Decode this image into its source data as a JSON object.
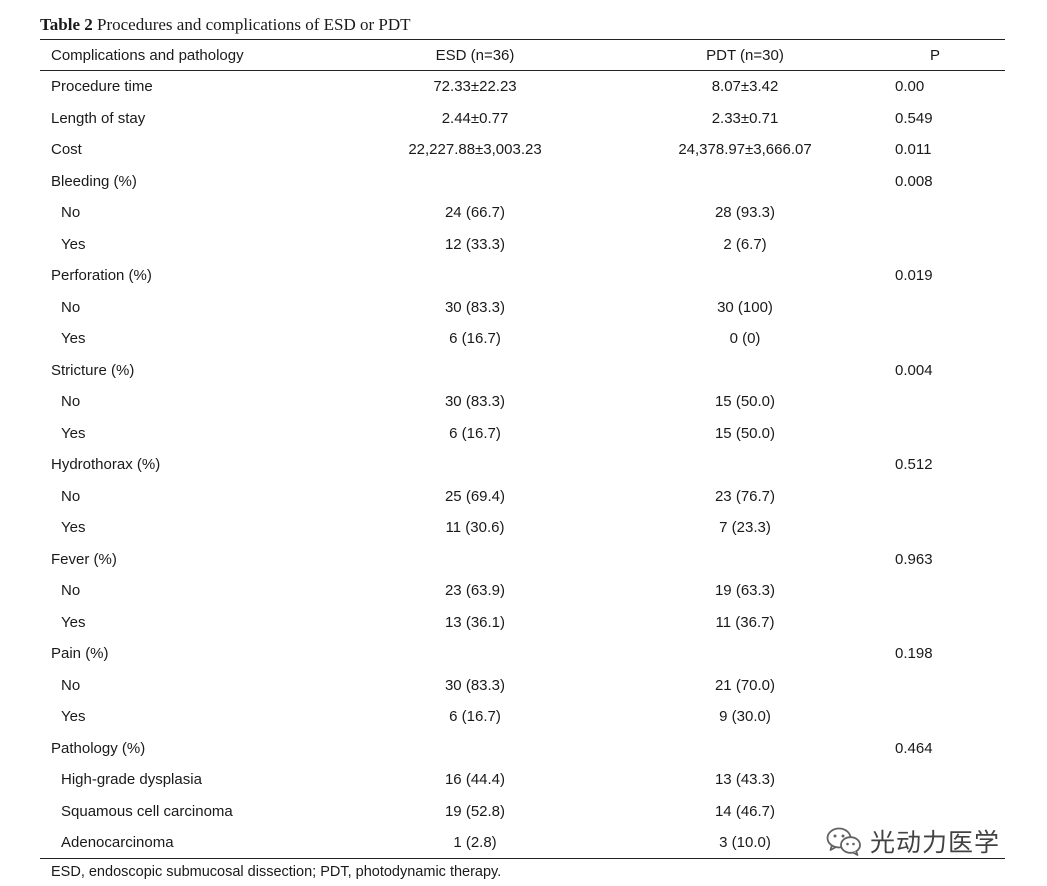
{
  "caption": {
    "label": "Table 2",
    "title": "Procedures and complications of ESD or PDT"
  },
  "table": {
    "headers": [
      "Complications and pathology",
      "ESD (n=36)",
      "PDT (n=30)",
      "P"
    ],
    "rows": [
      {
        "name": "Procedure time",
        "esd": "72.33±22.23",
        "pdt": "8.07±3.42",
        "p": "0.00",
        "indent": false
      },
      {
        "name": "Length of stay",
        "esd": "2.44±0.77",
        "pdt": "2.33±0.71",
        "p": "0.549",
        "indent": false
      },
      {
        "name": "Cost",
        "esd": "22,227.88±3,003.23",
        "pdt": "24,378.97±3,666.07",
        "p": "0.011",
        "indent": false
      },
      {
        "name": "Bleeding (%)",
        "esd": "",
        "pdt": "",
        "p": "0.008",
        "indent": false
      },
      {
        "name": "No",
        "esd": "24 (66.7)",
        "pdt": "28 (93.3)",
        "p": "",
        "indent": true
      },
      {
        "name": "Yes",
        "esd": "12 (33.3)",
        "pdt": "2 (6.7)",
        "p": "",
        "indent": true
      },
      {
        "name": "Perforation (%)",
        "esd": "",
        "pdt": "",
        "p": "0.019",
        "indent": false
      },
      {
        "name": "No",
        "esd": "30 (83.3)",
        "pdt": "30 (100)",
        "p": "",
        "indent": true
      },
      {
        "name": "Yes",
        "esd": "6 (16.7)",
        "pdt": "0 (0)",
        "p": "",
        "indent": true
      },
      {
        "name": "Stricture (%)",
        "esd": "",
        "pdt": "",
        "p": "0.004",
        "indent": false
      },
      {
        "name": "No",
        "esd": "30 (83.3)",
        "pdt": "15 (50.0)",
        "p": "",
        "indent": true
      },
      {
        "name": "Yes",
        "esd": "6 (16.7)",
        "pdt": "15 (50.0)",
        "p": "",
        "indent": true
      },
      {
        "name": "Hydrothorax (%)",
        "esd": "",
        "pdt": "",
        "p": "0.512",
        "indent": false
      },
      {
        "name": "No",
        "esd": "25 (69.4)",
        "pdt": "23 (76.7)",
        "p": "",
        "indent": true
      },
      {
        "name": "Yes",
        "esd": "11 (30.6)",
        "pdt": "7 (23.3)",
        "p": "",
        "indent": true
      },
      {
        "name": "Fever (%)",
        "esd": "",
        "pdt": "",
        "p": "0.963",
        "indent": false
      },
      {
        "name": "No",
        "esd": "23 (63.9)",
        "pdt": "19 (63.3)",
        "p": "",
        "indent": true
      },
      {
        "name": "Yes",
        "esd": "13 (36.1)",
        "pdt": "11 (36.7)",
        "p": "",
        "indent": true
      },
      {
        "name": "Pain (%)",
        "esd": "",
        "pdt": "",
        "p": "0.198",
        "indent": false
      },
      {
        "name": "No",
        "esd": "30 (83.3)",
        "pdt": "21 (70.0)",
        "p": "",
        "indent": true
      },
      {
        "name": "Yes",
        "esd": "6 (16.7)",
        "pdt": "9 (30.0)",
        "p": "",
        "indent": true
      },
      {
        "name": "Pathology (%)",
        "esd": "",
        "pdt": "",
        "p": "0.464",
        "indent": false
      },
      {
        "name": "High-grade dysplasia",
        "esd": "16 (44.4)",
        "pdt": "13 (43.3)",
        "p": "",
        "indent": true
      },
      {
        "name": "Squamous cell carcinoma",
        "esd": "19 (52.8)",
        "pdt": "14 (46.7)",
        "p": "",
        "indent": true
      },
      {
        "name": "Adenocarcinoma",
        "esd": "1 (2.8)",
        "pdt": "3 (10.0)",
        "p": "",
        "indent": true
      }
    ]
  },
  "footnote": "ESD, endoscopic submucosal dissection; PDT, photodynamic therapy.",
  "watermark": {
    "text": "光动力医学",
    "icon": "wechat-icon"
  }
}
